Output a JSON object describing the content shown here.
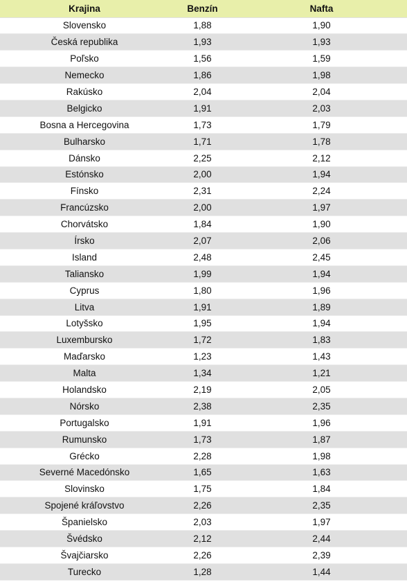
{
  "table": {
    "headers": [
      "Krajina",
      "Benzín",
      "Nafta"
    ],
    "rows": [
      [
        "Slovensko",
        "1,88",
        "1,90"
      ],
      [
        "Česká republika",
        "1,93",
        "1,93"
      ],
      [
        "Poľsko",
        "1,56",
        "1,59"
      ],
      [
        "Nemecko",
        "1,86",
        "1,98"
      ],
      [
        "Rakúsko",
        "2,04",
        "2,04"
      ],
      [
        "Belgicko",
        "1,91",
        "2,03"
      ],
      [
        "Bosna a Hercegovina",
        "1,73",
        "1,79"
      ],
      [
        "Bulharsko",
        "1,71",
        "1,78"
      ],
      [
        "Dánsko",
        "2,25",
        "2,12"
      ],
      [
        "Estónsko",
        "2,00",
        "1,94"
      ],
      [
        "Fínsko",
        "2,31",
        "2,24"
      ],
      [
        "Francúzsko",
        "2,00",
        "1,97"
      ],
      [
        "Chorvátsko",
        "1,84",
        "1,90"
      ],
      [
        "Írsko",
        "2,07",
        "2,06"
      ],
      [
        "Island",
        "2,48",
        "2,45"
      ],
      [
        "Taliansko",
        "1,99",
        "1,94"
      ],
      [
        "Cyprus",
        "1,80",
        "1,96"
      ],
      [
        "Litva",
        "1,91",
        "1,89"
      ],
      [
        "Lotyšsko",
        "1,95",
        "1,94"
      ],
      [
        "Luxembursko",
        "1,72",
        "1,83"
      ],
      [
        "Maďarsko",
        "1,23",
        "1,43"
      ],
      [
        "Malta",
        "1,34",
        "1,21"
      ],
      [
        "Holandsko",
        "2,19",
        "2,05"
      ],
      [
        "Nórsko",
        "2,38",
        "2,35"
      ],
      [
        "Portugalsko",
        "1,91",
        "1,96"
      ],
      [
        "Rumunsko",
        "1,73",
        "1,87"
      ],
      [
        "Grécko",
        "2,28",
        "1,98"
      ],
      [
        "Severné Macedónsko",
        "1,65",
        "1,63"
      ],
      [
        "Slovinsko",
        "1,75",
        "1,84"
      ],
      [
        "Spojené kráľovstvo",
        "2,26",
        "2,35"
      ],
      [
        "Španielsko",
        "2,03",
        "1,97"
      ],
      [
        "Švédsko",
        "2,12",
        "2,44"
      ],
      [
        "Švajčiarsko",
        "2,26",
        "2,39"
      ],
      [
        "Turecko",
        "1,28",
        "1,44"
      ]
    ]
  },
  "colors": {
    "header_bg": "#e8efaa",
    "stripe_bg": "#e0e0e0"
  }
}
